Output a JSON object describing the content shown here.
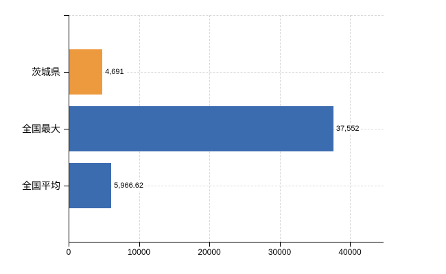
{
  "chart_data": {
    "type": "bar",
    "orientation": "horizontal",
    "categories": [
      "茨城県",
      "全国最大",
      "全国平均"
    ],
    "values": [
      4691,
      37552,
      5966.62
    ],
    "value_labels": [
      "4,691",
      "37,552",
      "5,966.62"
    ],
    "bar_colors": [
      "#ec9a3d",
      "#3c6cb0",
      "#3c6cb0"
    ],
    "x_ticks": [
      0,
      10000,
      20000,
      30000,
      40000
    ],
    "x_tick_labels": [
      "0",
      "10000",
      "20000",
      "30000",
      "40000"
    ],
    "xlim": [
      0,
      44780
    ],
    "grid": true,
    "legend": false,
    "layout": {
      "gridline_style": "dashed",
      "value_labels_position": "right-of-bar",
      "category_labels_position": "left-of-axis"
    },
    "colors": {
      "background": "#ffffff",
      "axis": "#000000",
      "gridline": "#d8d8d8",
      "text": "#000000",
      "bar_orange": "#ec9a3d",
      "bar_blue": "#3c6cb0"
    }
  }
}
